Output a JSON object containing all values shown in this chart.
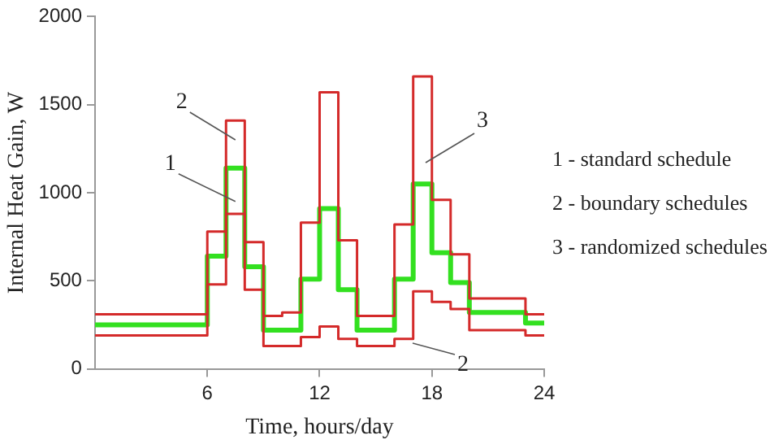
{
  "chart_data": {
    "type": "step",
    "xlabel": "Time, hours/day",
    "ylabel": "Internal Heat Gain, W",
    "x": [
      0,
      6,
      7,
      8,
      9,
      10,
      11,
      12,
      13,
      14,
      16,
      17,
      18,
      19,
      20,
      23,
      24
    ],
    "series": [
      {
        "color": "#d42a2a",
        "values": [
          310,
          780,
          1410,
          720,
          300,
          320,
          830,
          1570,
          730,
          300,
          820,
          1660,
          960,
          650,
          400,
          310,
          310
        ]
      },
      {
        "color": "#d42a2a",
        "values": [
          190,
          480,
          880,
          450,
          130,
          130,
          180,
          240,
          170,
          130,
          170,
          440,
          380,
          340,
          220,
          190,
          190
        ]
      },
      {
        "color": "#33e020",
        "values": [
          250,
          640,
          1140,
          580,
          220,
          220,
          510,
          910,
          450,
          220,
          510,
          1050,
          660,
          490,
          320,
          260,
          260
        ]
      }
    ],
    "xlim": [
      0,
      24
    ],
    "xticks": [
      6,
      12,
      18,
      24
    ],
    "ylim": [
      0,
      2000
    ],
    "yticks": [
      0,
      500,
      1000,
      1500,
      2000
    ],
    "grid": false,
    "legend": false,
    "marker": "none",
    "line_style": "solid",
    "annotations": [
      {
        "text": "1",
        "x": 7.5,
        "y": 950
      },
      {
        "text": "2",
        "x": 7.5,
        "y": 1300
      },
      "3",
      "2",
      "1 - standard schedule",
      "2 - boundary schedules",
      "3 - randomized schedules"
    ]
  }
}
